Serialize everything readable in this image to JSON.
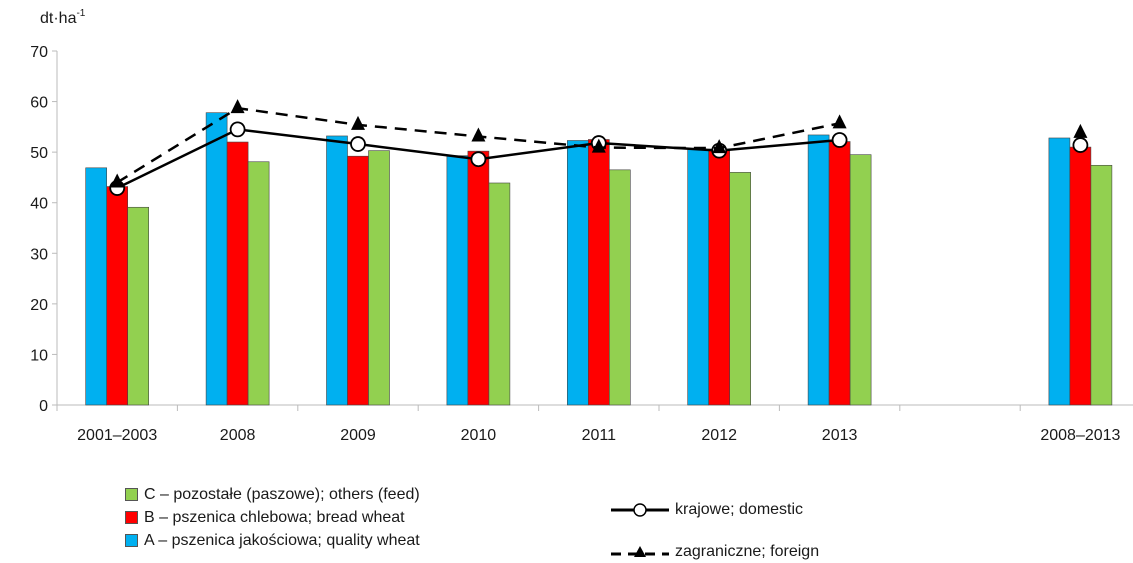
{
  "chart_data": {
    "type": "bar",
    "unit_label": "dt·ha",
    "unit_superscript": "-1",
    "categories": [
      "2001–2003",
      "2008",
      "2009",
      "2010",
      "2011",
      "2012",
      "2013",
      "",
      "2008–2013"
    ],
    "ylim": [
      0,
      70
    ],
    "yticks": [
      0,
      10,
      20,
      30,
      40,
      50,
      60,
      70
    ],
    "grid": false,
    "series": [
      {
        "name": "A – pszenica jakościowa; quality wheat",
        "kind": "bar",
        "color": "#00b0f0",
        "values": [
          46.9,
          57.8,
          53.2,
          49.3,
          52.3,
          50.5,
          53.4,
          null,
          52.8
        ]
      },
      {
        "name": "B – pszenica chlebowa; bread wheat",
        "kind": "bar",
        "color": "#ff0000",
        "values": [
          43.2,
          52.0,
          49.2,
          50.2,
          52.5,
          50.6,
          52.1,
          null,
          51.0
        ]
      },
      {
        "name": "C – pozostałe (paszowe); others (feed)",
        "kind": "bar",
        "color": "#92d050",
        "values": [
          39.1,
          48.1,
          50.3,
          43.9,
          46.5,
          46.0,
          49.5,
          null,
          47.4
        ]
      },
      {
        "name": "krajowe; domestic",
        "kind": "line",
        "style": "solid",
        "marker": "circle",
        "values": [
          42.9,
          54.5,
          51.6,
          48.6,
          51.8,
          50.3,
          52.4,
          null,
          51.4
        ]
      },
      {
        "name": "zagraniczne; foreign",
        "kind": "line",
        "style": "dashed",
        "marker": "triangle",
        "values": [
          44.0,
          58.7,
          55.4,
          53.1,
          50.9,
          50.8,
          55.7,
          null,
          53.8
        ]
      }
    ],
    "legend_placement": "bottom"
  }
}
